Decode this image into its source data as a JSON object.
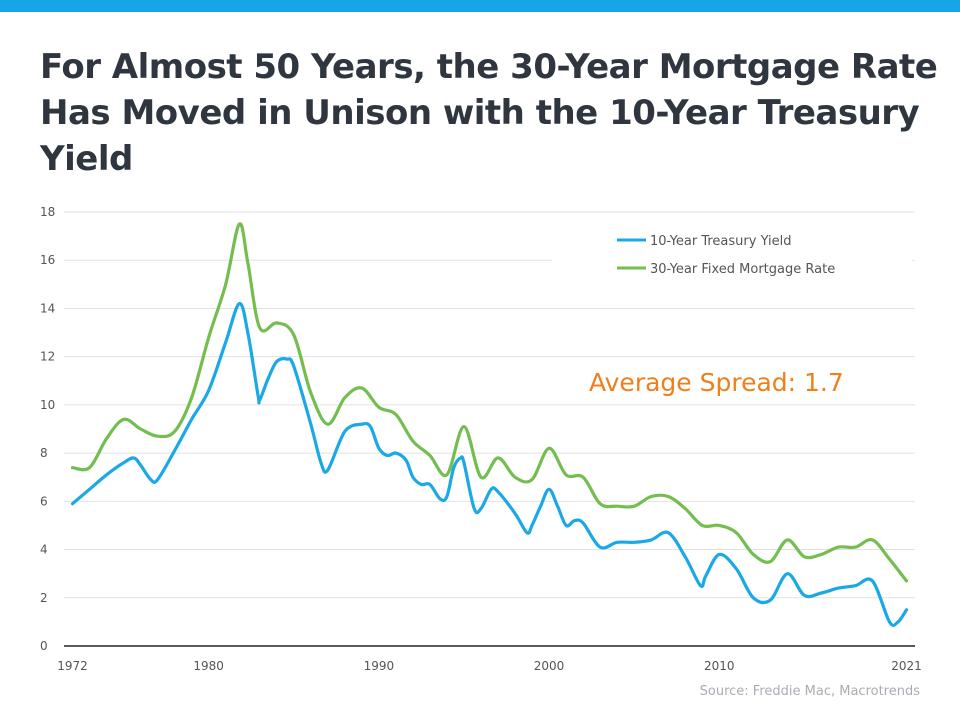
{
  "title": "For Almost 50 Years, the 30-Year Mortgage Rate Has Moved in Unison with the 10-Year Treasury Yield",
  "source": "Source: Freddie Mac, Macrotrends",
  "colors": {
    "top_bar": "#16a6e8",
    "treasury": "#1aa8e6",
    "mortgage": "#73be4f",
    "annotation": "#f07f1a",
    "title": "#2f3640",
    "grid": "#e2e2e2",
    "axis_text": "#555555"
  },
  "chart_data": {
    "type": "line",
    "xlim": [
      1971.5,
      2021.5
    ],
    "ylim": [
      0,
      18
    ],
    "xticks": [
      1972,
      1980,
      1990,
      2000,
      2010,
      2021
    ],
    "xtick_labels": [
      "1972",
      "1980",
      "1990",
      "2000",
      "2010",
      "2021"
    ],
    "yticks": [
      0,
      2,
      4,
      6,
      8,
      10,
      12,
      14,
      16,
      18
    ],
    "ytick_labels": [
      "0",
      "2",
      "4",
      "6",
      "8",
      "10",
      "12",
      "14",
      "16",
      "18"
    ],
    "grid": true,
    "legend_position": "top-right",
    "annotation": "Average Spread: 1.7",
    "series": [
      {
        "name": "10-Year Treasury Yield",
        "color": "#1aa8e6",
        "points": [
          [
            1972,
            5.9
          ],
          [
            1973,
            6.5
          ],
          [
            1974,
            7.1
          ],
          [
            1975,
            7.6
          ],
          [
            1975.6,
            7.8
          ],
          [
            1976,
            7.5
          ],
          [
            1976.6,
            6.9
          ],
          [
            1977,
            6.9
          ],
          [
            1978,
            8.1
          ],
          [
            1979,
            9.4
          ],
          [
            1980,
            10.6
          ],
          [
            1981,
            12.6
          ],
          [
            1981.8,
            14.2
          ],
          [
            1982.3,
            13.0
          ],
          [
            1982.9,
            10.4
          ],
          [
            1983,
            10.2
          ],
          [
            1983.5,
            11.1
          ],
          [
            1984,
            11.8
          ],
          [
            1984.6,
            11.9
          ],
          [
            1985,
            11.6
          ],
          [
            1986,
            9.2
          ],
          [
            1986.6,
            7.6
          ],
          [
            1987,
            7.3
          ],
          [
            1988,
            8.9
          ],
          [
            1989,
            9.2
          ],
          [
            1989.5,
            9.1
          ],
          [
            1990,
            8.2
          ],
          [
            1990.5,
            7.9
          ],
          [
            1991,
            8.0
          ],
          [
            1991.6,
            7.7
          ],
          [
            1992,
            7.0
          ],
          [
            1992.5,
            6.7
          ],
          [
            1993,
            6.7
          ],
          [
            1993.6,
            6.1
          ],
          [
            1994,
            6.2
          ],
          [
            1994.4,
            7.4
          ],
          [
            1994.8,
            7.8
          ],
          [
            1995,
            7.6
          ],
          [
            1995.6,
            5.7
          ],
          [
            1996,
            5.7
          ],
          [
            1996.6,
            6.5
          ],
          [
            1997,
            6.4
          ],
          [
            1998,
            5.5
          ],
          [
            1998.7,
            4.7
          ],
          [
            1999,
            5.0
          ],
          [
            1999.5,
            5.8
          ],
          [
            2000,
            6.5
          ],
          [
            2000.5,
            5.8
          ],
          [
            2001,
            5.0
          ],
          [
            2001.5,
            5.2
          ],
          [
            2002,
            5.1
          ],
          [
            2003,
            4.1
          ],
          [
            2004,
            4.3
          ],
          [
            2005,
            4.3
          ],
          [
            2006,
            4.4
          ],
          [
            2007,
            4.7
          ],
          [
            2008,
            3.7
          ],
          [
            2008.9,
            2.5
          ],
          [
            2009.2,
            2.9
          ],
          [
            2010,
            3.8
          ],
          [
            2011,
            3.2
          ],
          [
            2012,
            2.0
          ],
          [
            2013,
            1.9
          ],
          [
            2014,
            3.0
          ],
          [
            2015,
            2.1
          ],
          [
            2016,
            2.2
          ],
          [
            2017,
            2.4
          ],
          [
            2018,
            2.5
          ],
          [
            2019,
            2.7
          ],
          [
            2020,
            1.0
          ],
          [
            2020.5,
            1.0
          ],
          [
            2021,
            1.5
          ]
        ]
      },
      {
        "name": "30-Year Fixed Mortgage Rate",
        "color": "#73be4f",
        "points": [
          [
            1972,
            7.4
          ],
          [
            1973,
            7.4
          ],
          [
            1974,
            8.6
          ],
          [
            1975,
            9.4
          ],
          [
            1976,
            9.0
          ],
          [
            1977,
            8.7
          ],
          [
            1978,
            8.9
          ],
          [
            1979,
            10.3
          ],
          [
            1980,
            12.8
          ],
          [
            1981,
            15.0
          ],
          [
            1981.8,
            17.5
          ],
          [
            1982.3,
            15.9
          ],
          [
            1983,
            13.2
          ],
          [
            1984,
            13.4
          ],
          [
            1985,
            12.9
          ],
          [
            1986,
            10.5
          ],
          [
            1987,
            9.2
          ],
          [
            1988,
            10.3
          ],
          [
            1989,
            10.7
          ],
          [
            1990,
            9.9
          ],
          [
            1991,
            9.6
          ],
          [
            1992,
            8.5
          ],
          [
            1993,
            7.9
          ],
          [
            1994,
            7.1
          ],
          [
            1995,
            9.1
          ],
          [
            1996,
            7.0
          ],
          [
            1997,
            7.8
          ],
          [
            1998,
            7.0
          ],
          [
            1999,
            6.9
          ],
          [
            2000,
            8.2
          ],
          [
            2001,
            7.1
          ],
          [
            2002,
            7.0
          ],
          [
            2003,
            5.9
          ],
          [
            2004,
            5.8
          ],
          [
            2005,
            5.8
          ],
          [
            2006,
            6.2
          ],
          [
            2007,
            6.2
          ],
          [
            2008,
            5.7
          ],
          [
            2009,
            5.0
          ],
          [
            2010,
            5.0
          ],
          [
            2011,
            4.7
          ],
          [
            2012,
            3.8
          ],
          [
            2013,
            3.5
          ],
          [
            2014,
            4.4
          ],
          [
            2015,
            3.7
          ],
          [
            2016,
            3.8
          ],
          [
            2017,
            4.1
          ],
          [
            2018,
            4.1
          ],
          [
            2019,
            4.4
          ],
          [
            2020,
            3.6
          ],
          [
            2021,
            2.7
          ]
        ]
      }
    ]
  }
}
